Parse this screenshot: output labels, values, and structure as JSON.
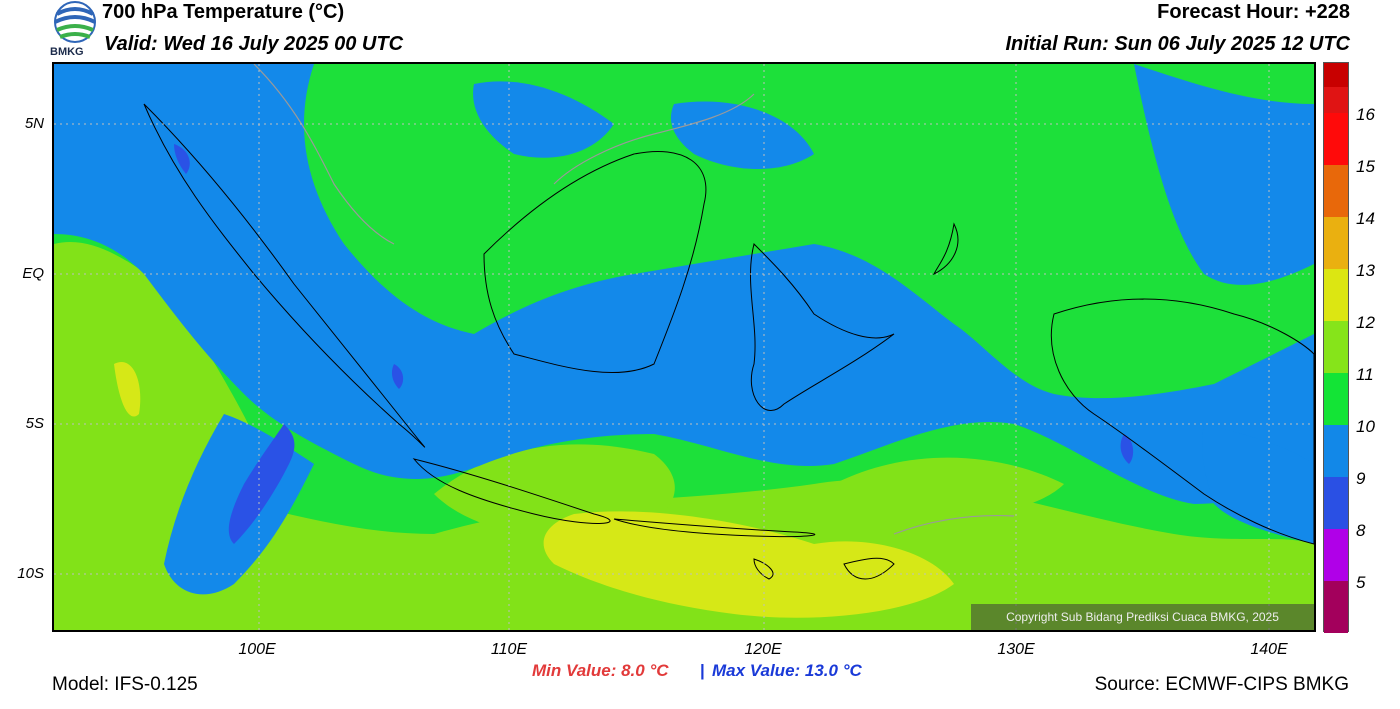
{
  "header": {
    "title": "700 hPa Temperature (°C)",
    "valid": "Valid: Wed 16 July 2025 00 UTC",
    "forecast_hour": "Forecast Hour: +228",
    "initial_run": "Initial Run: Sun 06 July 2025 12 UTC",
    "logo_text": "BMKG"
  },
  "map": {
    "lat_labels": [
      "5N",
      "EQ",
      "5S",
      "10S"
    ],
    "lon_labels": [
      "100E",
      "110E",
      "120E",
      "130E",
      "140E"
    ],
    "copyright": "Copyright Sub Bidang Prediksi Cuaca BMKG, 2025",
    "colors": {
      "c8": "#2a52e6",
      "c9": "#1389ea",
      "c10": "#17e23a",
      "c11": "#82e218",
      "c12": "#d6e817"
    }
  },
  "colorbar": {
    "labels": [
      "16",
      "15",
      "14",
      "13",
      "12",
      "11",
      "10",
      "9",
      "8",
      "5"
    ],
    "colors": [
      "#c80000",
      "#ee1a1a",
      "#ff0a0a",
      "#e8680a",
      "#eab010",
      "#dce612",
      "#86e41a",
      "#13e436",
      "#1288e8",
      "#2a50e4",
      "#b000e8",
      "#a3005c"
    ]
  },
  "footer": {
    "min_value": "Min Value: 8.0 °C",
    "separator": "|",
    "max_value": "Max Value: 13.0 °C",
    "model": "Model: IFS-0.125",
    "source": "Source: ECMWF-CIPS BMKG"
  }
}
